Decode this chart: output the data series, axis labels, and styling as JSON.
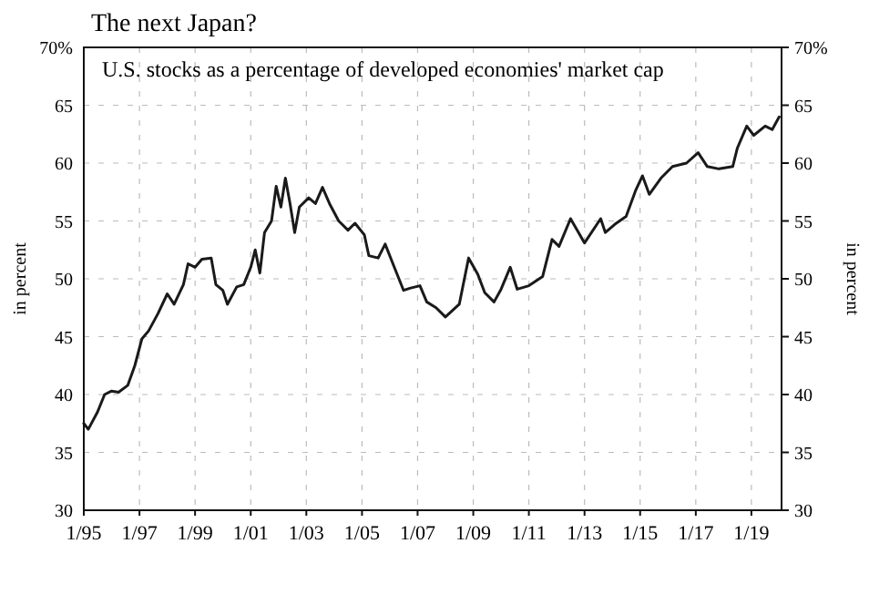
{
  "chart_data": {
    "type": "line",
    "title": "The next Japan?",
    "subtitle": "U.S. stocks as a percentage of developed economies' market cap",
    "ylabel": "in percent",
    "y2label": "in percent",
    "x": [
      "1995-01",
      "1995-03",
      "1995-07",
      "1995-10",
      "1996-01",
      "1996-04",
      "1996-08",
      "1996-11",
      "1997-02",
      "1997-05",
      "1997-09",
      "1998-01",
      "1998-04",
      "1998-08",
      "1998-10",
      "1999-01",
      "1999-04",
      "1999-08",
      "1999-10",
      "2000-01",
      "2000-03",
      "2000-07",
      "2000-10",
      "2001-01",
      "2001-03",
      "2001-05",
      "2001-07",
      "2001-10",
      "2001-12",
      "2002-02",
      "2002-04",
      "2002-06",
      "2002-08",
      "2002-10",
      "2003-02",
      "2003-05",
      "2003-08",
      "2003-11",
      "2004-03",
      "2004-07",
      "2004-10",
      "2005-02",
      "2005-04",
      "2005-08",
      "2005-11",
      "2006-03",
      "2006-07",
      "2006-10",
      "2007-02",
      "2007-05",
      "2007-09",
      "2008-01",
      "2008-07",
      "2008-11",
      "2009-03",
      "2009-06",
      "2009-10",
      "2010-01",
      "2010-05",
      "2010-08",
      "2011-01",
      "2011-07",
      "2011-11",
      "2012-02",
      "2012-07",
      "2013-01",
      "2013-08",
      "2013-10",
      "2014-02",
      "2014-07",
      "2014-11",
      "2015-02",
      "2015-05",
      "2015-10",
      "2016-03",
      "2016-09",
      "2017-02",
      "2017-06",
      "2017-11",
      "2018-05",
      "2018-07",
      "2018-11",
      "2019-02",
      "2019-07",
      "2019-10",
      "2020-01"
    ],
    "series": [
      {
        "color": "#1a1a1a",
        "values": [
          37.5,
          37.0,
          38.5,
          40.0,
          40.3,
          40.2,
          40.8,
          42.5,
          44.8,
          45.5,
          47.0,
          48.7,
          47.8,
          49.5,
          51.3,
          51.0,
          51.7,
          51.8,
          49.5,
          49.0,
          47.8,
          49.3,
          49.5,
          51.0,
          52.5,
          50.5,
          54.0,
          55.0,
          58.0,
          56.2,
          58.7,
          56.5,
          54.0,
          56.2,
          57.0,
          56.5,
          57.9,
          56.5,
          55.0,
          54.2,
          54.8,
          53.8,
          52.0,
          51.8,
          53.0,
          51.0,
          49.0,
          49.2,
          49.4,
          48.0,
          47.5,
          46.7,
          47.8,
          51.8,
          50.4,
          48.8,
          48.0,
          49.1,
          51.0,
          49.1,
          49.4,
          50.2,
          53.4,
          52.8,
          55.2,
          53.1,
          55.2,
          54.0,
          54.7,
          55.4,
          57.6,
          58.9,
          57.3,
          58.7,
          59.7,
          60.0,
          60.9,
          59.7,
          59.5,
          59.7,
          61.3,
          63.2,
          62.4,
          63.2,
          62.9,
          64.0
        ]
      }
    ],
    "xlim": [
      "1995-01",
      "2020-02"
    ],
    "xticks": [
      {
        "value": "1995-01",
        "label": "1/95"
      },
      {
        "value": "1997-01",
        "label": "1/97"
      },
      {
        "value": "1999-01",
        "label": "1/99"
      },
      {
        "value": "2001-01",
        "label": "1/01"
      },
      {
        "value": "2003-01",
        "label": "1/03"
      },
      {
        "value": "2005-01",
        "label": "1/05"
      },
      {
        "value": "2007-01",
        "label": "1/07"
      },
      {
        "value": "2009-01",
        "label": "1/09"
      },
      {
        "value": "2011-01",
        "label": "1/11"
      },
      {
        "value": "2013-01",
        "label": "1/13"
      },
      {
        "value": "2015-01",
        "label": "1/15"
      },
      {
        "value": "2017-01",
        "label": "1/17"
      },
      {
        "value": "2019-01",
        "label": "1/19"
      }
    ],
    "ylim": [
      30,
      70
    ],
    "yticks": [
      30,
      35,
      40,
      45,
      50,
      55,
      60,
      65,
      {
        "value": 70,
        "label": "70%"
      }
    ],
    "y2lim": [
      30,
      70
    ],
    "y2ticks": [
      30,
      35,
      40,
      45,
      50,
      55,
      60,
      65,
      {
        "value": 70,
        "label": "70%"
      }
    ],
    "grid": true,
    "line_style": "solid",
    "marker": "none"
  }
}
